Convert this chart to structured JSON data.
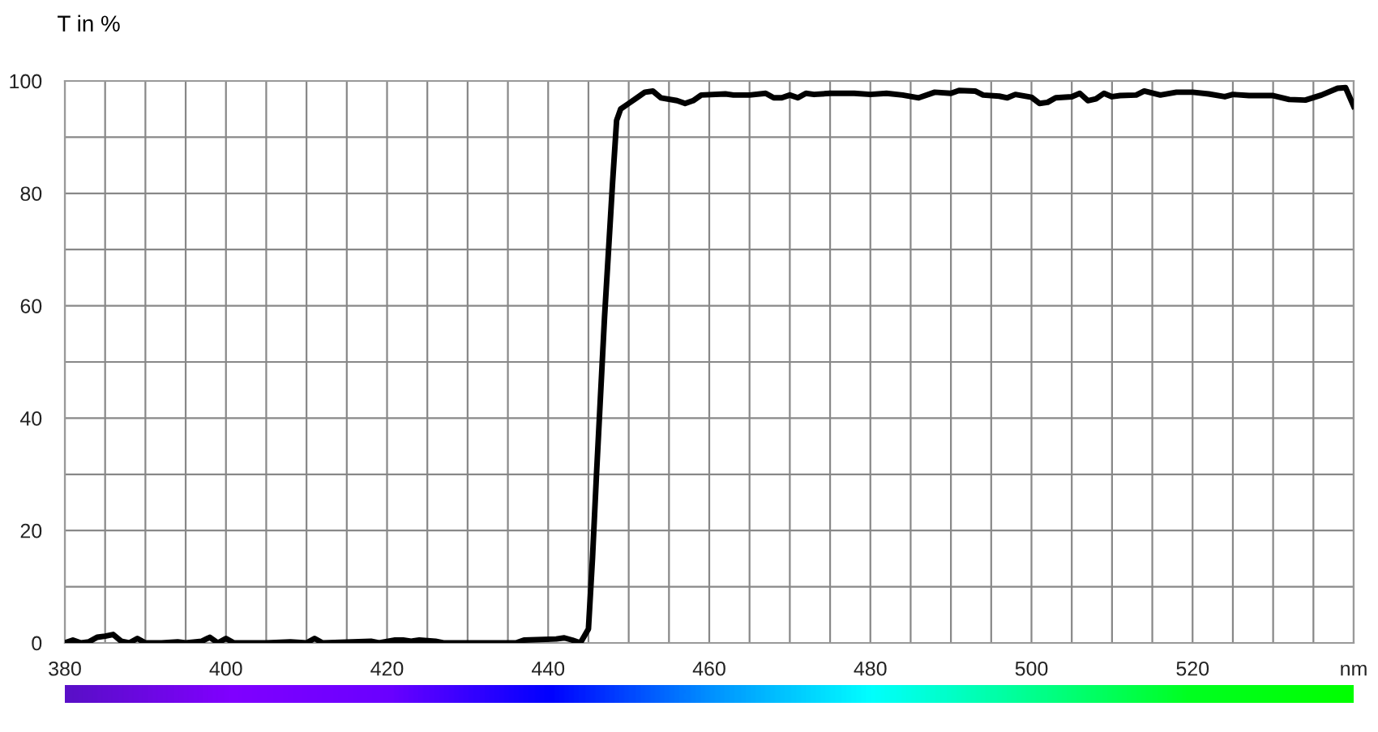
{
  "chart_data": {
    "type": "line",
    "ylabel": "T in %",
    "x": [
      380,
      381,
      382,
      383,
      384,
      385,
      386,
      387,
      388,
      389,
      390,
      392,
      394,
      395,
      397,
      398,
      399,
      400,
      401,
      405,
      408,
      410,
      411,
      412,
      418,
      419,
      421,
      422,
      423,
      424,
      426,
      427,
      436,
      437,
      441,
      442,
      443,
      444,
      445,
      445.5,
      446,
      447,
      448,
      448.5,
      449,
      450,
      451,
      452,
      453,
      454,
      456,
      457,
      458,
      459,
      462,
      463,
      465,
      467,
      468,
      469,
      470,
      471,
      472,
      473,
      475,
      478,
      480,
      482,
      484,
      486,
      488,
      490,
      491,
      493,
      494,
      496,
      497,
      498,
      500,
      501,
      502,
      503,
      505,
      506,
      507,
      508,
      509,
      510,
      511,
      513,
      514,
      516,
      518,
      520,
      522,
      524,
      525,
      527,
      530,
      532,
      534,
      536,
      538,
      539,
      540
    ],
    "series": [
      {
        "color": "#000000",
        "values": [
          0,
          0.5,
          0,
          0.2,
          1,
          1.2,
          1.5,
          0.3,
          0,
          0.8,
          0,
          0,
          0.2,
          0,
          0.3,
          1,
          0,
          0.8,
          0,
          0,
          0.2,
          0,
          0.8,
          0,
          0.3,
          0,
          0.5,
          0.5,
          0.3,
          0.5,
          0.3,
          0,
          0,
          0.5,
          0.7,
          0.9,
          0.5,
          0,
          2.5,
          15,
          30,
          58,
          82,
          93,
          95,
          96,
          97,
          98,
          98.2,
          97,
          96.5,
          96,
          96.5,
          97.5,
          97.7,
          97.5,
          97.5,
          97.8,
          97,
          97,
          97.5,
          97,
          97.8,
          97.6,
          97.8,
          97.8,
          97.6,
          97.8,
          97.5,
          97,
          98,
          97.8,
          98.3,
          98.2,
          97.5,
          97.3,
          97,
          97.6,
          97.1,
          96,
          96.2,
          97,
          97.2,
          97.8,
          96.5,
          96.8,
          97.8,
          97.2,
          97.4,
          97.5,
          98.2,
          97.5,
          98,
          98,
          97.7,
          97.2,
          97.6,
          97.4,
          97.4,
          96.7,
          96.6,
          97.5,
          98.7,
          98.8,
          95.5
        ]
      }
    ],
    "xlim": [
      380,
      540
    ],
    "xticks": [
      380,
      {
        "value": 385,
        "label": null
      },
      400,
      {
        "value": 405,
        "label": null
      },
      {
        "value": 390,
        "label": null
      },
      {
        "value": 395,
        "label": null
      },
      {
        "value": 410,
        "label": null
      },
      {
        "value": 415,
        "label": null
      },
      420,
      {
        "value": 425,
        "label": null
      },
      {
        "value": 430,
        "label": null
      },
      {
        "value": 435,
        "label": null
      },
      440,
      {
        "value": 445,
        "label": null
      },
      {
        "value": 450,
        "label": null
      },
      {
        "value": 455,
        "label": null
      },
      460,
      {
        "value": 465,
        "label": null
      },
      {
        "value": 470,
        "label": null
      },
      {
        "value": 475,
        "label": null
      },
      480,
      {
        "value": 485,
        "label": null
      },
      {
        "value": 490,
        "label": null
      },
      {
        "value": 495,
        "label": null
      },
      500,
      {
        "value": 505,
        "label": null
      },
      {
        "value": 510,
        "label": null
      },
      {
        "value": 515,
        "label": null
      },
      520,
      {
        "value": 525,
        "label": null
      },
      {
        "value": 530,
        "label": null
      },
      {
        "value": 535,
        "label": null
      },
      {
        "value": 540,
        "label": "nm"
      }
    ],
    "ylim": [
      0,
      100
    ],
    "yticks": [
      0,
      {
        "value": 10,
        "label": null
      },
      20,
      {
        "value": 30,
        "label": null
      },
      40,
      {
        "value": 50,
        "label": null
      },
      60,
      {
        "value": 70,
        "label": null
      },
      80,
      {
        "value": 90,
        "label": null
      },
      100
    ],
    "grid": true,
    "line_style": "solid",
    "marker": "none"
  }
}
